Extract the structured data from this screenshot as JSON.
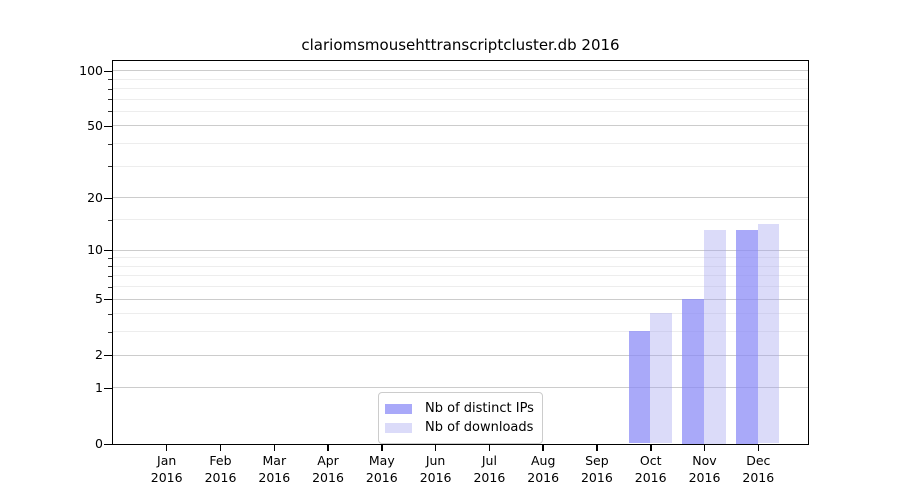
{
  "chart_data": {
    "type": "bar",
    "title": "clariomsmousehttranscriptcluster.db 2016",
    "categories": [
      "Jan",
      "Feb",
      "Mar",
      "Apr",
      "May",
      "Jun",
      "Jul",
      "Aug",
      "Sep",
      "Oct",
      "Nov",
      "Dec"
    ],
    "year_label": "2016",
    "series": [
      {
        "name": "Nb of distinct IPs",
        "color": "rgba(136,136,247,0.72)",
        "values": [
          0,
          0,
          0,
          0,
          0,
          0,
          0,
          0,
          0,
          3,
          5,
          13
        ]
      },
      {
        "name": "Nb of downloads",
        "color": "rgba(160,160,238,0.38)",
        "values": [
          0,
          0,
          0,
          0,
          0,
          0,
          0,
          0,
          0,
          4,
          13,
          14
        ]
      }
    ],
    "y_axis": {
      "scale": "log1p",
      "major_ticks": [
        0,
        1,
        2,
        5,
        10,
        20,
        50,
        100
      ],
      "minor_ticks": [
        3,
        4,
        6,
        7,
        8,
        9,
        15,
        30,
        40,
        60,
        70,
        80,
        90
      ],
      "range": [
        0,
        113
      ]
    },
    "legend_position": "lower-center",
    "grid": true,
    "colors": {
      "background": "#ffffff",
      "axis": "#000000",
      "grid_major": "#cccccc",
      "grid_minor": "#ededed"
    }
  }
}
